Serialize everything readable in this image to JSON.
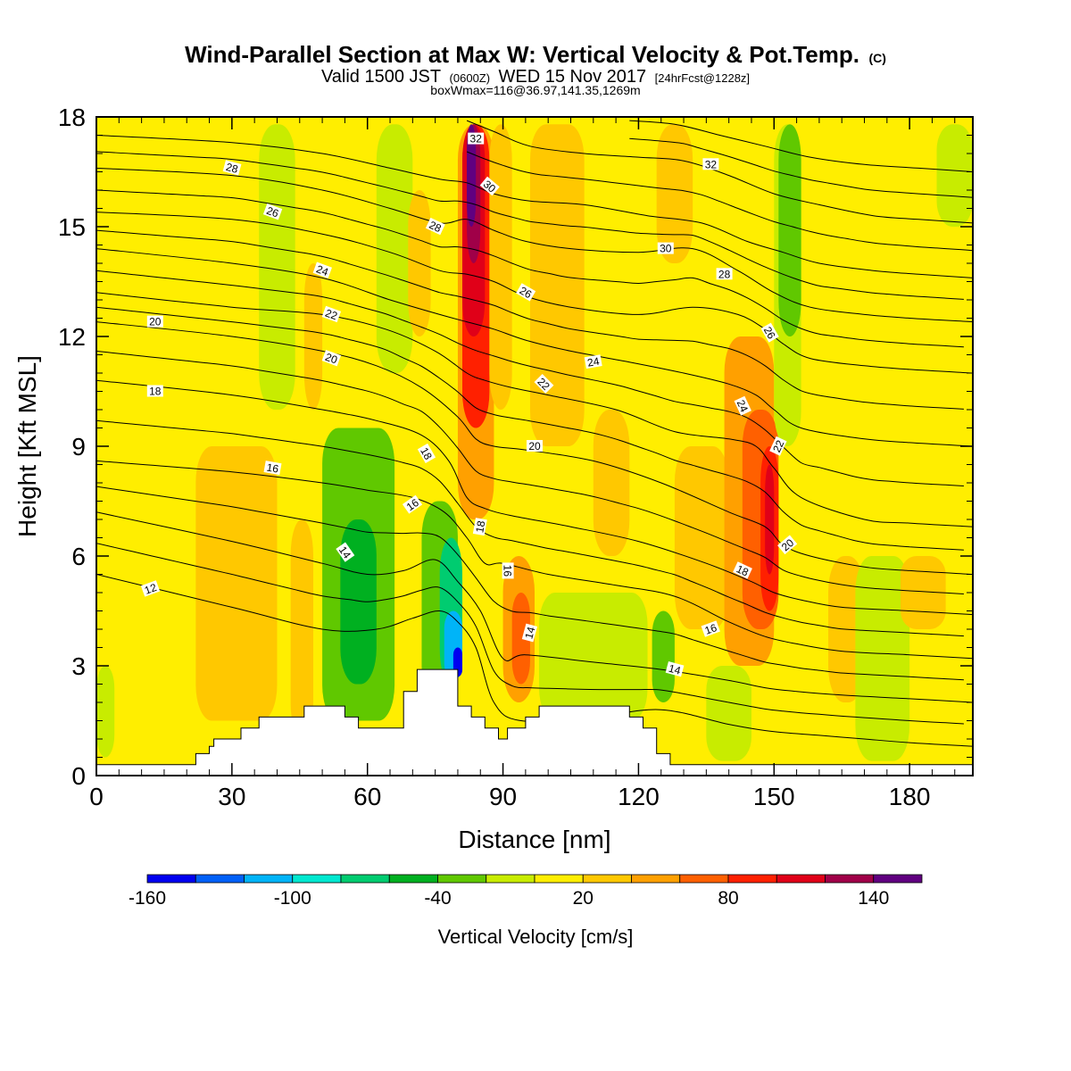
{
  "title": {
    "main": "Wind-Parallel Section at Max W: Vertical Velocity & Pot.Temp.",
    "main_suffix": "(C)",
    "valid_prefix": "Valid 1500 JST",
    "valid_zulu": "(0600Z)",
    "valid_date": "WED 15 Nov 2017",
    "valid_forecast": "[24hrFcst@1228z]",
    "box_info": "boxWmax=116@36.97,141.35,1269m"
  },
  "chart_data": {
    "type": "heatmap",
    "xlabel": "Distance [nm]",
    "ylabel": "Height [Kft MSL]",
    "xlim": [
      0,
      194
    ],
    "ylim": [
      0,
      18
    ],
    "x_ticks": [
      0,
      30,
      60,
      90,
      120,
      150,
      180
    ],
    "y_ticks": [
      0,
      3,
      6,
      9,
      12,
      15,
      18
    ],
    "x_tick_labels": [
      "0",
      "30",
      "60",
      "90",
      "120",
      "150",
      "180"
    ],
    "y_tick_labels": [
      "0",
      "3",
      "6",
      "9",
      "12",
      "15",
      "18"
    ],
    "grid": false,
    "colorbar": {
      "label": "Vertical Velocity [cm/s]",
      "placement": "bottom",
      "levels": [
        -160,
        -140,
        -120,
        -100,
        -80,
        -60,
        -40,
        -20,
        0,
        20,
        40,
        60,
        80,
        100,
        120,
        140,
        160
      ],
      "colors": [
        "#0000f0",
        "#0060f8",
        "#00b4f8",
        "#00e8d0",
        "#00cc70",
        "#00b020",
        "#60c800",
        "#c8ec00",
        "#ffee00",
        "#ffc800",
        "#ffa000",
        "#ff6000",
        "#ff2000",
        "#e00018",
        "#a00048",
        "#600080"
      ],
      "tick_values": [
        -160,
        -100,
        -40,
        20,
        80,
        140
      ],
      "tick_labels": [
        "-160",
        "-100",
        "-40",
        "20",
        "80",
        "140"
      ]
    },
    "w_cells": [
      {
        "x0": 0,
        "x1": 194,
        "y0": 0,
        "y1": 18,
        "w": 10
      },
      {
        "x0": 0,
        "x1": 4,
        "y0": 0.5,
        "y1": 3,
        "w": -10
      },
      {
        "x0": 22,
        "x1": 40,
        "y0": 1.5,
        "y1": 9,
        "w": 30
      },
      {
        "x0": 36,
        "x1": 44,
        "y0": 10,
        "y1": 17.8,
        "w": -10
      },
      {
        "x0": 43,
        "x1": 48,
        "y0": 1,
        "y1": 7,
        "w": 30
      },
      {
        "x0": 46,
        "x1": 50,
        "y0": 10,
        "y1": 14,
        "w": 30
      },
      {
        "x0": 50,
        "x1": 66,
        "y0": 1.5,
        "y1": 9.5,
        "w": -30
      },
      {
        "x0": 54,
        "x1": 62,
        "y0": 2.5,
        "y1": 7,
        "w": -50
      },
      {
        "x0": 62,
        "x1": 70,
        "y0": 11,
        "y1": 17.8,
        "w": -10
      },
      {
        "x0": 69,
        "x1": 74,
        "y0": 12,
        "y1": 16,
        "w": 30
      },
      {
        "x0": 72,
        "x1": 80,
        "y0": 2,
        "y1": 7.5,
        "w": -30
      },
      {
        "x0": 76,
        "x1": 81,
        "y0": 2.5,
        "y1": 6.5,
        "w": -70
      },
      {
        "x0": 77,
        "x1": 81,
        "y0": 2.6,
        "y1": 4.5,
        "w": -110
      },
      {
        "x0": 79,
        "x1": 81,
        "y0": 2.7,
        "y1": 3.5,
        "w": -150
      },
      {
        "x0": 80,
        "x1": 88,
        "y0": 7,
        "y1": 17.8,
        "w": 50
      },
      {
        "x0": 81,
        "x1": 87,
        "y0": 9.5,
        "y1": 17.8,
        "w": 90
      },
      {
        "x0": 81,
        "x1": 86,
        "y0": 12,
        "y1": 17.8,
        "w": 110
      },
      {
        "x0": 82,
        "x1": 85,
        "y0": 14,
        "y1": 17.8,
        "w": 130
      },
      {
        "x0": 82,
        "x1": 84,
        "y0": 15,
        "y1": 17.8,
        "w": 150
      },
      {
        "x0": 87,
        "x1": 92,
        "y0": 10,
        "y1": 17.8,
        "w": 30
      },
      {
        "x0": 90,
        "x1": 97,
        "y0": 2,
        "y1": 6,
        "w": 50
      },
      {
        "x0": 92,
        "x1": 96,
        "y0": 2.5,
        "y1": 5,
        "w": 70
      },
      {
        "x0": 96,
        "x1": 108,
        "y0": 9,
        "y1": 17.8,
        "w": 30
      },
      {
        "x0": 98,
        "x1": 122,
        "y0": 1.5,
        "y1": 5,
        "w": -10
      },
      {
        "x0": 110,
        "x1": 118,
        "y0": 6,
        "y1": 10,
        "w": 30
      },
      {
        "x0": 123,
        "x1": 128,
        "y0": 2,
        "y1": 4.5,
        "w": -30
      },
      {
        "x0": 124,
        "x1": 132,
        "y0": 14,
        "y1": 17.8,
        "w": 30
      },
      {
        "x0": 128,
        "x1": 140,
        "y0": 4,
        "y1": 9,
        "w": 30
      },
      {
        "x0": 135,
        "x1": 145,
        "y0": 0.4,
        "y1": 3,
        "w": -10
      },
      {
        "x0": 139,
        "x1": 150,
        "y0": 3,
        "y1": 12,
        "w": 50
      },
      {
        "x0": 143,
        "x1": 151,
        "y0": 4,
        "y1": 10,
        "w": 70
      },
      {
        "x0": 147,
        "x1": 151,
        "y0": 4.5,
        "y1": 9,
        "w": 90
      },
      {
        "x0": 148,
        "x1": 150,
        "y0": 5.5,
        "y1": 8.5,
        "w": 110
      },
      {
        "x0": 150,
        "x1": 156,
        "y0": 9,
        "y1": 17.8,
        "w": -10
      },
      {
        "x0": 151,
        "x1": 156,
        "y0": 12,
        "y1": 17.8,
        "w": -30
      },
      {
        "x0": 162,
        "x1": 170,
        "y0": 2,
        "y1": 6,
        "w": 30
      },
      {
        "x0": 168,
        "x1": 180,
        "y0": 0.4,
        "y1": 6,
        "w": -10
      },
      {
        "x0": 178,
        "x1": 188,
        "y0": 4,
        "y1": 6,
        "w": 30
      },
      {
        "x0": 186,
        "x1": 194,
        "y0": 15,
        "y1": 17.8,
        "w": -10
      }
    ],
    "terrain": {
      "x": [
        0,
        22,
        22,
        25,
        25,
        26,
        26,
        32,
        32,
        36,
        36,
        46,
        46,
        55,
        55,
        58,
        58,
        68,
        68,
        71,
        71,
        80,
        80,
        83,
        83,
        86,
        86,
        89,
        89,
        91,
        91,
        95,
        95,
        98,
        98,
        118,
        118,
        121,
        121,
        124,
        124,
        127,
        127,
        194
      ],
      "height": [
        0.3,
        0.3,
        0.6,
        0.6,
        0.8,
        0.8,
        1.0,
        1.0,
        1.3,
        1.3,
        1.6,
        1.6,
        1.9,
        1.9,
        1.6,
        1.6,
        1.3,
        1.3,
        2.3,
        2.3,
        2.9,
        2.9,
        1.9,
        1.9,
        1.6,
        1.6,
        1.3,
        1.3,
        1.0,
        1.0,
        1.3,
        1.3,
        1.6,
        1.6,
        1.9,
        1.9,
        1.6,
        1.6,
        1.3,
        1.3,
        0.6,
        0.6,
        0.3,
        0.3
      ]
    },
    "contours": [
      {
        "level": 12,
        "x": [
          0,
          30,
          50,
          62,
          70,
          76,
          80,
          84,
          88,
          94,
          110,
          125,
          140,
          150,
          160,
          170,
          180,
          194
        ],
        "height": [
          5.5,
          4.6,
          4.0,
          4.0,
          4.3,
          4.5,
          4.2,
          3.5,
          2.0,
          1.5,
          1.6,
          1.8,
          1.4,
          1.2,
          1.1,
          1.0,
          0.9,
          0.8
        ]
      },
      {
        "level": 14,
        "x": [
          0,
          30,
          50,
          60,
          68,
          75,
          80,
          85,
          90,
          95,
          110,
          125,
          140,
          148,
          155,
          165,
          180,
          194
        ],
        "height": [
          7.2,
          6.4,
          5.8,
          5.5,
          5.6,
          5.9,
          5.3,
          4.5,
          3.2,
          3.3,
          3.1,
          2.9,
          2.6,
          2.4,
          2.3,
          2.2,
          2.1,
          2.0
        ]
      },
      {
        "level": 16,
        "x": [
          0,
          30,
          50,
          60,
          70,
          77,
          82,
          86,
          90,
          100,
          115,
          128,
          140,
          148,
          155,
          165,
          180,
          194
        ],
        "height": [
          8.6,
          8.3,
          8.0,
          7.8,
          7.6,
          7.2,
          6.5,
          5.8,
          5.8,
          5.5,
          5.2,
          4.9,
          4.2,
          3.8,
          3.6,
          3.4,
          3.3,
          3.2
        ]
      },
      {
        "level": 18,
        "x": [
          0,
          30,
          50,
          62,
          72,
          78,
          82,
          86,
          92,
          105,
          120,
          135,
          145,
          150,
          156,
          165,
          180,
          194
        ],
        "height": [
          10.8,
          10.4,
          10.0,
          9.7,
          9.3,
          8.6,
          7.6,
          7.3,
          7.1,
          6.8,
          6.4,
          5.8,
          5.3,
          5.0,
          4.8,
          4.6,
          4.5,
          4.4
        ]
      },
      {
        "level": 20,
        "x": [
          0,
          30,
          50,
          62,
          72,
          80,
          84,
          88,
          95,
          110,
          125,
          140,
          148,
          152,
          158,
          170,
          180,
          194
        ],
        "height": [
          12.4,
          12.0,
          11.6,
          11.2,
          10.6,
          9.8,
          9.2,
          9.0,
          8.9,
          8.6,
          8.0,
          7.2,
          6.8,
          6.3,
          6.0,
          5.7,
          5.6,
          5.5
        ]
      },
      {
        "level": 22,
        "x": [
          0,
          30,
          50,
          64,
          75,
          82,
          86,
          92,
          100,
          115,
          128,
          140,
          146,
          150,
          156,
          170,
          180,
          194
        ],
        "height": [
          13.2,
          12.8,
          12.6,
          12.2,
          11.6,
          11.0,
          10.8,
          10.6,
          10.4,
          10.0,
          9.4,
          9.2,
          9.0,
          8.4,
          7.6,
          7.0,
          6.9,
          6.8
        ]
      },
      {
        "level": 24,
        "x": [
          0,
          30,
          50,
          65,
          76,
          82,
          88,
          95,
          105,
          118,
          130,
          140,
          146,
          150,
          156,
          170,
          180,
          194
        ],
        "height": [
          14.4,
          14.0,
          13.6,
          13.0,
          12.6,
          12.4,
          12.2,
          11.9,
          11.6,
          11.3,
          11.0,
          10.7,
          10.4,
          10.0,
          9.5,
          9.2,
          9.1,
          9.0
        ]
      },
      {
        "level": 26,
        "x": [
          0,
          30,
          50,
          65,
          76,
          82,
          88,
          95,
          105,
          120,
          132,
          142,
          148,
          152,
          158,
          170,
          180,
          194
        ],
        "height": [
          15.4,
          15.2,
          14.8,
          14.3,
          13.8,
          13.7,
          13.5,
          13.1,
          12.8,
          12.6,
          12.8,
          12.6,
          12.2,
          11.8,
          11.4,
          11.2,
          11.1,
          11.0
        ]
      },
      {
        "level": 28,
        "x": [
          0,
          30,
          50,
          65,
          76,
          82,
          88,
          95,
          105,
          120,
          132,
          142,
          150,
          158,
          170,
          180,
          194
        ],
        "height": [
          16.6,
          16.4,
          16.0,
          15.5,
          15.1,
          15.2,
          14.9,
          14.6,
          14.4,
          14.3,
          14.4,
          13.8,
          13.2,
          12.8,
          12.6,
          12.5,
          12.4
        ]
      },
      {
        "level": 30,
        "x": [
          0,
          30,
          50,
          65,
          76,
          82,
          88,
          96,
          108,
          122,
          134,
          144,
          152,
          160,
          172,
          182,
          194
        ],
        "height": [
          17.5,
          17.3,
          17.0,
          16.6,
          16.3,
          16.2,
          15.9,
          15.7,
          15.6,
          15.3,
          15.1,
          14.6,
          14.3,
          14.0,
          13.8,
          13.7,
          13.6
        ]
      },
      {
        "level": 32,
        "x": [
          82,
          88,
          96,
          108,
          120,
          130,
          140,
          150,
          160,
          172,
          182,
          194
        ],
        "height": [
          17.9,
          17.6,
          17.2,
          17.0,
          16.9,
          16.8,
          16.4,
          15.9,
          15.6,
          15.3,
          15.2,
          15.1
        ]
      },
      {
        "level": 34,
        "x": [
          118,
          128,
          138,
          148,
          158,
          170,
          182,
          194
        ],
        "height": [
          17.9,
          17.8,
          17.5,
          17.2,
          16.9,
          16.7,
          16.6,
          16.5
        ]
      }
    ],
    "contour_labels": [
      {
        "text": "12",
        "x": 12,
        "height": 5.1,
        "angle": -20
      },
      {
        "text": "14",
        "x": 55,
        "height": 6.1,
        "angle": 55
      },
      {
        "text": "14",
        "x": 96,
        "height": 3.9,
        "angle": -75
      },
      {
        "text": "14",
        "x": 128,
        "height": 2.9,
        "angle": 15
      },
      {
        "text": "16",
        "x": 39,
        "height": 8.4,
        "angle": 10
      },
      {
        "text": "16",
        "x": 70,
        "height": 7.4,
        "angle": -35
      },
      {
        "text": "16",
        "x": 91,
        "height": 5.6,
        "angle": 90
      },
      {
        "text": "16",
        "x": 136,
        "height": 4.0,
        "angle": -20
      },
      {
        "text": "18",
        "x": 13,
        "height": 10.5,
        "angle": 0
      },
      {
        "text": "18",
        "x": 73,
        "height": 8.8,
        "angle": 60
      },
      {
        "text": "18",
        "x": 85,
        "height": 6.8,
        "angle": -80
      },
      {
        "text": "18",
        "x": 143,
        "height": 5.6,
        "angle": 25
      },
      {
        "text": "20",
        "x": 13,
        "height": 12.4,
        "angle": 0
      },
      {
        "text": "20",
        "x": 52,
        "height": 11.4,
        "angle": 20
      },
      {
        "text": "20",
        "x": 97,
        "height": 9.0,
        "angle": 0
      },
      {
        "text": "20",
        "x": 153,
        "height": 6.3,
        "angle": -40
      },
      {
        "text": "22",
        "x": 52,
        "height": 12.6,
        "angle": 20
      },
      {
        "text": "22",
        "x": 99,
        "height": 10.7,
        "angle": 45
      },
      {
        "text": "22",
        "x": 151,
        "height": 9.0,
        "angle": -65
      },
      {
        "text": "24",
        "x": 50,
        "height": 13.8,
        "angle": 20
      },
      {
        "text": "24",
        "x": 110,
        "height": 11.3,
        "angle": -10
      },
      {
        "text": "24",
        "x": 143,
        "height": 10.1,
        "angle": 65
      },
      {
        "text": "26",
        "x": 39,
        "height": 15.4,
        "angle": 20
      },
      {
        "text": "26",
        "x": 95,
        "height": 13.2,
        "angle": 30
      },
      {
        "text": "26",
        "x": 149,
        "height": 12.1,
        "angle": 60
      },
      {
        "text": "28",
        "x": 30,
        "height": 16.6,
        "angle": 15
      },
      {
        "text": "28",
        "x": 75,
        "height": 15.0,
        "angle": 25
      },
      {
        "text": "28",
        "x": 139,
        "height": 13.7,
        "angle": 0
      },
      {
        "text": "30",
        "x": 87,
        "height": 16.1,
        "angle": 40
      },
      {
        "text": "30",
        "x": 126,
        "height": 14.4,
        "angle": 0
      },
      {
        "text": "32",
        "x": 84,
        "height": 17.4,
        "angle": 0
      },
      {
        "text": "32",
        "x": 136,
        "height": 16.7,
        "angle": 0
      }
    ]
  }
}
